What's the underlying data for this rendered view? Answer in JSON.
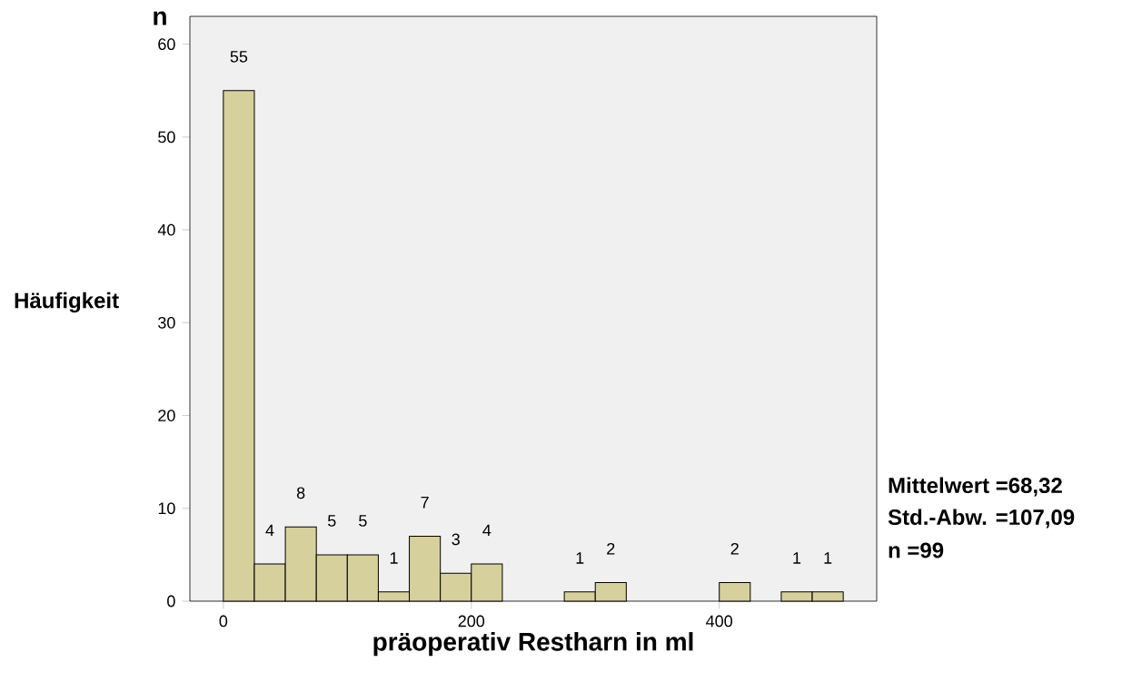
{
  "chart_data": {
    "type": "histogram",
    "xlabel": "präoperativ Restharn in ml",
    "ylabel": "Häufigkeit",
    "bins": [
      0,
      25,
      50,
      75,
      100,
      125,
      150,
      175,
      200,
      225,
      250,
      275,
      300,
      325,
      350,
      375,
      400,
      425,
      450,
      475,
      500
    ],
    "values": [
      55,
      4,
      8,
      5,
      5,
      1,
      7,
      3,
      4,
      0,
      0,
      1,
      2,
      0,
      0,
      0,
      2,
      0,
      1,
      1
    ],
    "value_labels": [
      "55",
      "4",
      "8",
      "5",
      "5",
      "1",
      "7",
      "3",
      "4",
      null,
      null,
      "1",
      "2",
      null,
      null,
      null,
      "2",
      null,
      "1",
      "1"
    ],
    "color": "#d6d09c",
    "xlim": [
      -27,
      527
    ],
    "ylim": [
      0,
      63
    ],
    "xticks": [
      0,
      200,
      400
    ],
    "yticks": [
      0,
      10,
      20,
      30,
      40,
      50,
      60
    ],
    "grid": false,
    "annotations": [
      "n",
      "Mittelwert =68,32",
      "Std.-Abw. =107,09",
      "n =99"
    ]
  }
}
